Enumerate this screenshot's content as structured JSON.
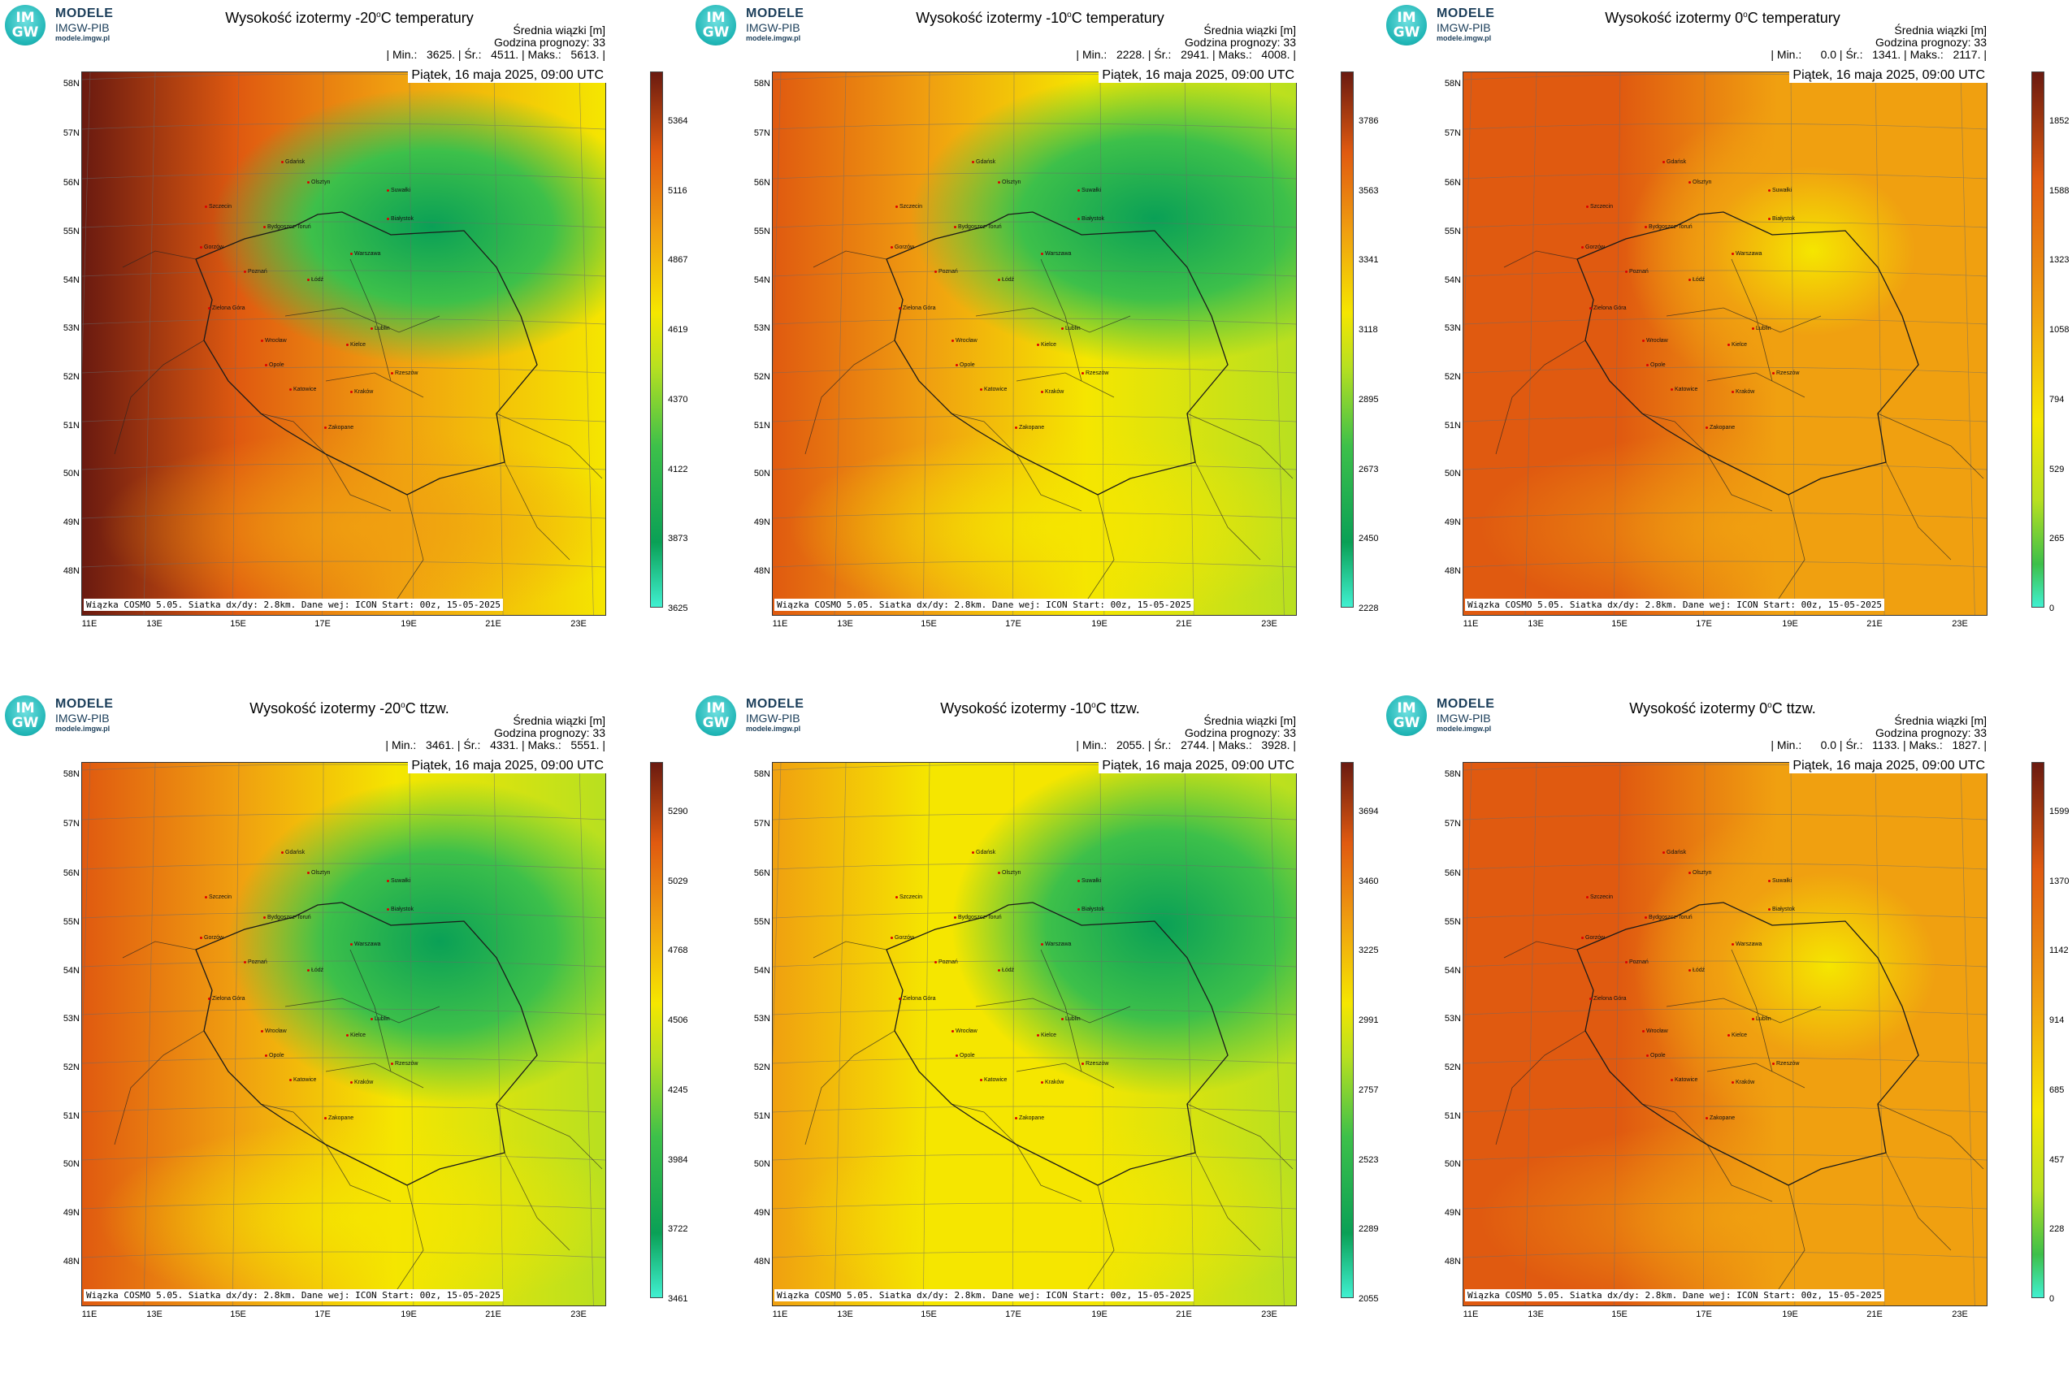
{
  "logo": {
    "badge_top": "IM",
    "badge_bottom": "GW",
    "line1": "MODELE",
    "line2": "IMGW-PIB",
    "line3": "modele.imgw.pl"
  },
  "common": {
    "info_line1": "Średnia wiązki [m]",
    "info_line2": "Godzina prognozy: 33",
    "dateline": "Piątek, 16 maja 2025, 09:00 UTC",
    "footer": "Wiązka COSMO 5.05. Siatka dx/dy: 2.8km. Dane wej: ICON Start: 00z, 15-05-2025",
    "lat_labels": [
      "58N",
      "57N",
      "56N",
      "55N",
      "54N",
      "53N",
      "52N",
      "51N",
      "50N",
      "49N",
      "48N"
    ],
    "lon_labels": [
      "11E",
      "13E",
      "15E",
      "17E",
      "19E",
      "21E",
      "23E"
    ],
    "cities": [
      "Gdańsk",
      "Olsztyn",
      "Suwałki",
      "Szczecin",
      "Białystok",
      "Bydgoszcz-Toruń",
      "Gorzów",
      "Warszawa",
      "Poznań",
      "Łódź",
      "Zielona Góra",
      "Lublin",
      "Wrocław",
      "Kielce",
      "Opole",
      "Rzeszów",
      "Katowice",
      "Kraków",
      "Zakopane"
    ],
    "colors": {
      "green_dark": "#0aa056",
      "green": "#3dc04a",
      "lime": "#b8e020",
      "yellow": "#f5e600",
      "orange": "#f0a010",
      "red_orange": "#e05a10",
      "dark_red": "#6a1a10",
      "cyan": "#40f0d0"
    }
  },
  "panels": [
    {
      "title_pre": "Wysokość izotermy -20",
      "title_sup": "o",
      "title_post": "C temperatury",
      "stats": "| Min.:   3625. | Śr.:   4511. | Maks.:   5613. |",
      "cbar_ticks": [
        "5364",
        "5116",
        "4867",
        "4619",
        "4370",
        "4122",
        "3873",
        "3625"
      ],
      "style": "t20"
    },
    {
      "title_pre": "Wysokość izotermy -10",
      "title_sup": "o",
      "title_post": "C temperatury",
      "stats": "| Min.:   2228. | Śr.:   2941. | Maks.:   4008. |",
      "cbar_ticks": [
        "3786",
        "3563",
        "3341",
        "3118",
        "2895",
        "2673",
        "2450",
        "2228"
      ],
      "style": "t10"
    },
    {
      "title_pre": "Wysokość izotermy 0",
      "title_sup": "o",
      "title_post": "C temperatury",
      "stats": "| Min.:      0.0 | Śr.:   1341. | Maks.:   2117. |",
      "cbar_ticks": [
        "1852",
        "1588",
        "1323",
        "1058",
        "794",
        "529",
        "265",
        "0"
      ],
      "style": "t0"
    },
    {
      "title_pre": "Wysokość izotermy -20",
      "title_sup": "o",
      "title_post": "C ttzw.",
      "stats": "| Min.:   3461. | Śr.:   4331. | Maks.:   5551. |",
      "cbar_ticks": [
        "5290",
        "5029",
        "4768",
        "4506",
        "4245",
        "3984",
        "3722",
        "3461"
      ],
      "style": "w20"
    },
    {
      "title_pre": "Wysokość izotermy -10",
      "title_sup": "o",
      "title_post": "C ttzw.",
      "stats": "| Min.:   2055. | Śr.:   2744. | Maks.:   3928. |",
      "cbar_ticks": [
        "3694",
        "3460",
        "3225",
        "2991",
        "2757",
        "2523",
        "2289",
        "2055"
      ],
      "style": "w10"
    },
    {
      "title_pre": "Wysokość izotermy 0",
      "title_sup": "o",
      "title_post": "C ttzw.",
      "stats": "| Min.:      0.0 | Śr.:   1133. | Maks.:   1827. |",
      "cbar_ticks": [
        "1599",
        "1370",
        "1142",
        "914",
        "685",
        "457",
        "228",
        "0"
      ],
      "style": "w0"
    }
  ]
}
